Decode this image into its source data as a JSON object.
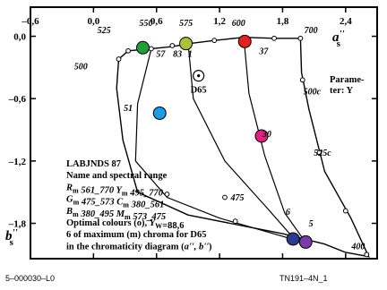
{
  "chart_data": {
    "type": "scatter",
    "xlim": [
      -0.6,
      2.7
    ],
    "ylim": [
      -2.14,
      0.28
    ],
    "x_ticks": [
      {
        "v": -0.6,
        "label": "–0,6"
      },
      {
        "v": 0.0,
        "label": "0,0"
      },
      {
        "v": 0.6,
        "label": "0,6"
      },
      {
        "v": 1.2,
        "label": "1,2"
      },
      {
        "v": 1.8,
        "label": "1,8"
      },
      {
        "v": 2.4,
        "label": "2,4"
      }
    ],
    "y_ticks": [
      {
        "v": 0.0,
        "label": "0,0"
      },
      {
        "v": -0.6,
        "label": "–0,6"
      },
      {
        "v": -1.2,
        "label": "–1,2"
      },
      {
        "v": -1.8,
        "label": "–1,8"
      }
    ],
    "x_axis_label": {
      "main": "a",
      "sup": "''",
      "sub": "s"
    },
    "y_axis_label": {
      "main": "b",
      "sup": "''",
      "sub": "s"
    },
    "param_label": [
      "Parame-",
      "ter: Y"
    ],
    "white_point": {
      "x": 1.0,
      "y": -0.38,
      "label": "D65"
    },
    "curve": [
      [
        0.55,
        -0.12
      ],
      [
        0.33,
        -0.14
      ],
      [
        0.24,
        -0.22
      ],
      [
        0.22,
        -0.5
      ],
      [
        0.28,
        -1.0
      ],
      [
        0.42,
        -1.5
      ],
      [
        0.9,
        -1.72
      ],
      [
        1.3,
        -1.8
      ],
      [
        1.8,
        -1.9
      ],
      [
        2.2,
        -2.0
      ],
      [
        2.4,
        -2.08
      ],
      [
        2.62,
        -2.12
      ],
      [
        2.45,
        -1.75
      ],
      [
        2.2,
        -1.3
      ],
      [
        2.05,
        -0.7
      ],
      [
        1.98,
        -0.35
      ],
      [
        1.97,
        -0.02
      ],
      [
        1.72,
        -0.02
      ],
      [
        1.43,
        -0.01
      ],
      [
        1.15,
        -0.04
      ],
      [
        0.92,
        -0.07
      ],
      [
        0.75,
        -0.1
      ],
      [
        0.55,
        -0.12
      ]
    ],
    "inner_lines": [
      [
        [
          0.55,
          -0.12
        ],
        [
          0.42,
          -0.65
        ],
        [
          0.4,
          -1.2
        ],
        [
          0.7,
          -1.55
        ],
        [
          1.2,
          -1.75
        ],
        [
          1.92,
          -1.96
        ]
      ],
      [
        [
          0.9,
          -0.06
        ],
        [
          0.95,
          -0.6
        ],
        [
          1.25,
          -1.2
        ],
        [
          1.65,
          -1.65
        ],
        [
          1.92,
          -1.96
        ]
      ],
      [
        [
          1.43,
          -0.01
        ],
        [
          1.48,
          -0.55
        ],
        [
          1.63,
          -1.15
        ],
        [
          1.82,
          -1.7
        ],
        [
          2.01,
          -1.97
        ]
      ]
    ],
    "optimal_marks": [
      [
        0.55,
        -0.12
      ],
      [
        0.33,
        -0.14
      ],
      [
        0.24,
        -0.22
      ],
      [
        0.75,
        -0.09
      ],
      [
        1.15,
        -0.04
      ],
      [
        1.72,
        -0.02
      ],
      [
        1.97,
        -0.02
      ],
      [
        1.99,
        -0.42
      ],
      [
        2.15,
        -1.12
      ],
      [
        2.4,
        -1.68
      ],
      [
        2.6,
        -2.1
      ],
      [
        1.25,
        -1.55
      ],
      [
        0.7,
        -1.52
      ],
      [
        1.35,
        -1.78
      ]
    ],
    "maximum_chroma_points": [
      {
        "name": "green",
        "x": 0.47,
        "y": -0.11,
        "color": "#1f9f3a"
      },
      {
        "name": "yellow-green",
        "x": 0.88,
        "y": -0.07,
        "color": "#a8c43a"
      },
      {
        "name": "red",
        "x": 1.44,
        "y": -0.05,
        "color": "#e32020"
      },
      {
        "name": "cyan",
        "x": 0.63,
        "y": -0.74,
        "color": "#1e9be3"
      },
      {
        "name": "magenta",
        "x": 1.6,
        "y": -0.96,
        "color": "#e0207e"
      },
      {
        "name": "blue",
        "x": 1.9,
        "y": -1.95,
        "color": "#2a3a8f"
      },
      {
        "name": "violet",
        "x": 2.02,
        "y": -1.98,
        "color": "#7a3aa8"
      }
    ],
    "curve_labels": [
      {
        "text": "525",
        "x": 0.1,
        "y": 0.03
      },
      {
        "text": "550",
        "x": 0.5,
        "y": 0.1
      },
      {
        "text": "575",
        "x": 0.88,
        "y": 0.1
      },
      {
        "text": "600",
        "x": 1.38,
        "y": 0.1
      },
      {
        "text": "700",
        "x": 2.07,
        "y": 0.03
      },
      {
        "text": "500",
        "x": -0.12,
        "y": -0.32
      },
      {
        "text": "57",
        "x": 0.64,
        "y": -0.2
      },
      {
        "text": "83",
        "x": 0.8,
        "y": -0.2
      },
      {
        "text": "1",
        "x": 0.92,
        "y": -0.2
      },
      {
        "text": "37",
        "x": 1.62,
        "y": -0.17
      },
      {
        "text": "500c",
        "x": 2.08,
        "y": -0.56
      },
      {
        "text": "51",
        "x": 0.33,
        "y": -0.72
      },
      {
        "text": "30",
        "x": 1.65,
        "y": -0.97
      },
      {
        "text": "525c",
        "x": 2.18,
        "y": -1.15
      },
      {
        "text": "475",
        "x": 1.37,
        "y": -1.58
      },
      {
        "text": "6",
        "x": 1.85,
        "y": -1.72
      },
      {
        "text": "5",
        "x": 2.07,
        "y": -1.83
      },
      {
        "text": "400",
        "x": 2.52,
        "y": -2.05
      }
    ],
    "info_lines": [
      [
        {
          "t": "LABJNDS 87"
        }
      ],
      [
        {
          "t": "Name and spectral range"
        }
      ],
      [
        {
          "t": "R",
          "it": true
        },
        {
          "t": "m",
          "sub": true
        },
        {
          "t": " 561_770  ",
          "it": true
        },
        {
          "t": "Y",
          "it": true
        },
        {
          "t": "m",
          "sub": true
        },
        {
          "t": " 495_770",
          "it": true
        }
      ],
      [
        {
          "t": "G",
          "it": true
        },
        {
          "t": "m",
          "sub": true
        },
        {
          "t": " 475_573  ",
          "it": true
        },
        {
          "t": "C",
          "it": true
        },
        {
          "t": "m",
          "sub": true
        },
        {
          "t": " 380_561",
          "it": true
        }
      ],
      [
        {
          "t": "B",
          "it": true
        },
        {
          "t": "m",
          "sub": true
        },
        {
          "t": " 380_495  ",
          "it": true
        },
        {
          "t": "M",
          "it": true
        },
        {
          "t": "m",
          "sub": true
        },
        {
          "t": " 573_475",
          "it": true
        }
      ],
      [
        {
          "t": "Optimal colours (o), "
        },
        {
          "t": "Y",
          "it": true
        },
        {
          "t": "W",
          "sub": true
        },
        {
          "t": "=88,6"
        }
      ],
      [
        {
          "t": "6 of maximum (m) chroma for D65"
        }
      ],
      [
        {
          "t": "in the chromaticity diagram ("
        },
        {
          "t": "a'', b''",
          "it": true
        },
        {
          "t": ")"
        }
      ]
    ]
  },
  "footer": {
    "left": "5–000030–L0",
    "right": "TN191–4N_1"
  }
}
